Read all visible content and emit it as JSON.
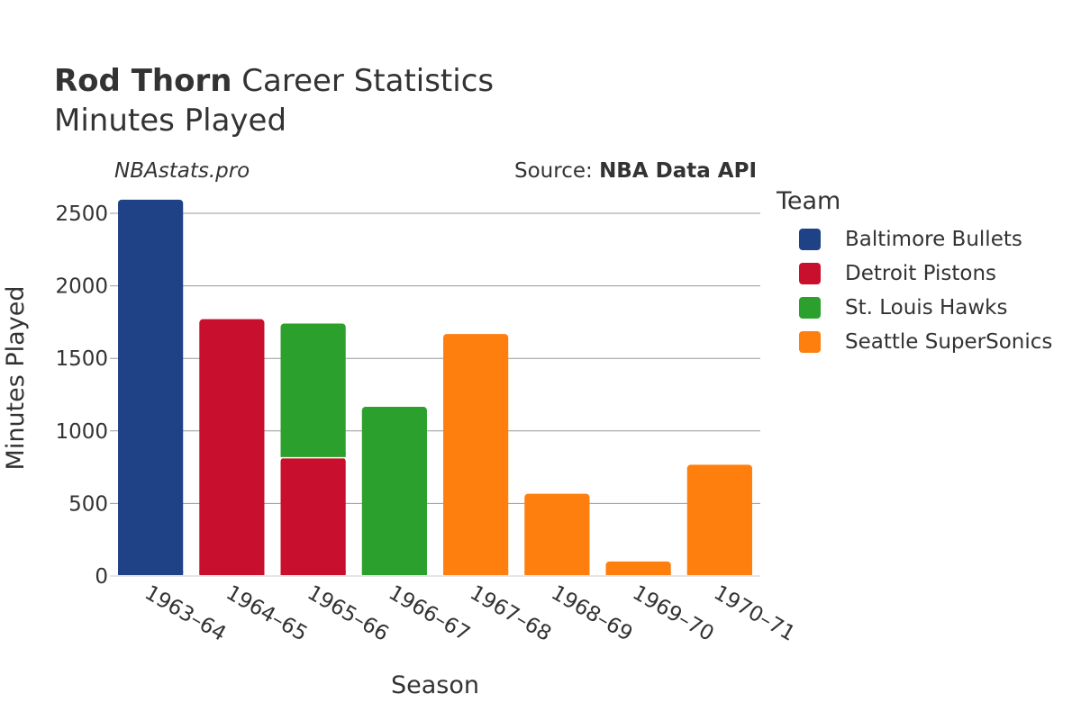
{
  "header": {
    "player_name": "Rod Thorn",
    "title_rest": " Career Statistics",
    "subtitle": "Minutes Played",
    "watermark": "NBAstats.pro",
    "source_prefix": "Source: ",
    "source_name": "NBA Data API"
  },
  "legend": {
    "title": "Team",
    "items": [
      {
        "label": "Baltimore Bullets",
        "color": "#1f4287"
      },
      {
        "label": "Detroit Pistons",
        "color": "#c8102e"
      },
      {
        "label": "St. Louis Hawks",
        "color": "#2ca02c"
      },
      {
        "label": "Seattle SuperSonics",
        "color": "#ff7f0e"
      }
    ]
  },
  "chart_data": {
    "type": "bar",
    "stacked": true,
    "title": "Rod Thorn Career Statistics",
    "subtitle": "Minutes Played",
    "xlabel": "Season",
    "ylabel": "Minutes Played",
    "ylim": [
      0,
      2700
    ],
    "yticks": [
      0,
      500,
      1000,
      1500,
      2000,
      2500
    ],
    "categories": [
      "1963–64",
      "1964–65",
      "1965–66",
      "1966–67",
      "1967–68",
      "1968–69",
      "1969–70",
      "1970–71"
    ],
    "series": [
      {
        "name": "Baltimore Bullets",
        "color": "#1f4287",
        "values": [
          2594,
          0,
          0,
          0,
          0,
          0,
          0,
          0
        ]
      },
      {
        "name": "Detroit Pistons",
        "color": "#c8102e",
        "values": [
          0,
          1770,
          815,
          0,
          0,
          0,
          0,
          0
        ]
      },
      {
        "name": "St. Louis Hawks",
        "color": "#2ca02c",
        "values": [
          0,
          0,
          925,
          1166,
          0,
          0,
          0,
          0
        ]
      },
      {
        "name": "Seattle SuperSonics",
        "color": "#ff7f0e",
        "values": [
          0,
          0,
          0,
          0,
          1668,
          567,
          100,
          767
        ]
      }
    ]
  }
}
